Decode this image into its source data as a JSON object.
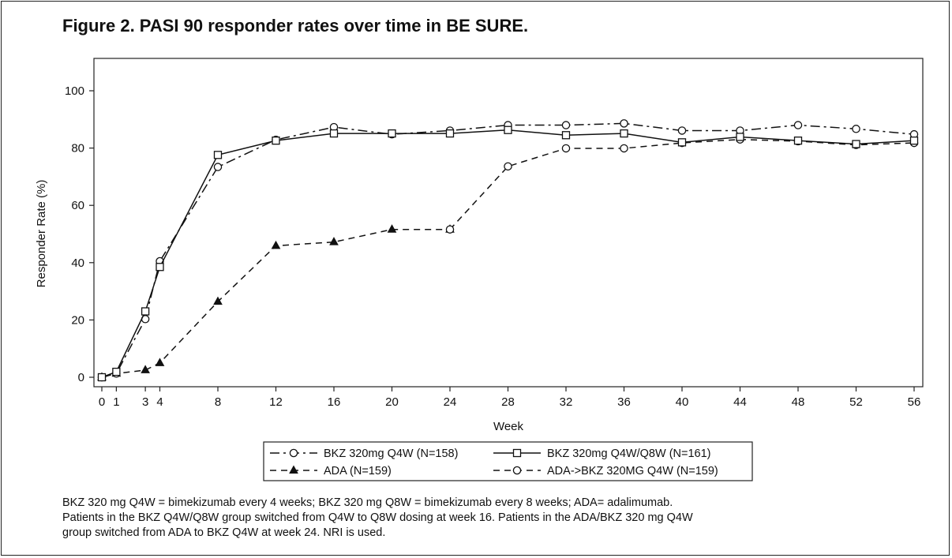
{
  "title": "Figure 2. PASI 90 responder rates over time in BE SURE.",
  "footnote": [
    "BKZ 320 mg Q4W = bimekizumab every 4 weeks; BKZ 320 mg Q8W = bimekizumab every 8 weeks; ADA= adalimumab.",
    "Patients in the BKZ Q4W/Q8W group switched from Q4W to Q8W dosing at week 16. Patients in the ADA/BKZ 320 mg Q4W",
    "group switched from ADA to BKZ Q4W at week 24. NRI is used."
  ],
  "chart_data": {
    "type": "line",
    "xlabel": "Week",
    "ylabel": "Responder Rate (%)",
    "xlim": [
      0,
      56
    ],
    "ylim": [
      0,
      110
    ],
    "x_ticks": [
      0,
      1,
      3,
      4,
      8,
      12,
      16,
      20,
      24,
      28,
      32,
      36,
      40,
      44,
      48,
      52,
      56
    ],
    "y_ticks": [
      0,
      20,
      40,
      60,
      80,
      100
    ],
    "grid": false,
    "legend_position": "bottom",
    "series": [
      {
        "name": "BKZ 320mg Q4W (N=158)",
        "style": "dash-dot",
        "marker": "circle",
        "x": [
          0,
          1,
          3,
          4,
          8,
          12,
          16,
          20,
          24,
          28,
          32,
          36,
          40,
          44,
          48,
          52,
          56
        ],
        "y": [
          0,
          1.3,
          20.3,
          40.5,
          73.4,
          82.9,
          87.3,
          84.8,
          86.1,
          88.0,
          88.0,
          88.6,
          86.1,
          86.1,
          88.0,
          86.7,
          84.8
        ]
      },
      {
        "name": "BKZ 320mg Q4W/Q8W (N=161)",
        "style": "solid",
        "marker": "square",
        "x": [
          0,
          1,
          3,
          4,
          8,
          12,
          16,
          20,
          24,
          28,
          32,
          36,
          40,
          44,
          48,
          52,
          56
        ],
        "y": [
          0,
          1.9,
          23.0,
          38.5,
          77.6,
          82.6,
          85.1,
          85.1,
          85.1,
          86.3,
          84.5,
          85.1,
          82.0,
          83.9,
          82.6,
          81.4,
          82.6
        ]
      },
      {
        "name": "ADA (N=159)",
        "style": "dashed",
        "marker": "triangle",
        "x": [
          0,
          1,
          3,
          4,
          8,
          12,
          16,
          20,
          24
        ],
        "y": [
          0,
          1.3,
          2.5,
          5.0,
          26.4,
          45.9,
          47.2,
          51.6,
          51.6
        ]
      },
      {
        "name": "ADA->BKZ 320MG Q4W (N=159)",
        "style": "dashed",
        "marker": "circle",
        "x": [
          24,
          28,
          32,
          36,
          40,
          44,
          48,
          52,
          56
        ],
        "y": [
          51.6,
          73.6,
          79.9,
          79.9,
          81.8,
          83.0,
          82.4,
          81.1,
          81.8
        ]
      }
    ]
  }
}
